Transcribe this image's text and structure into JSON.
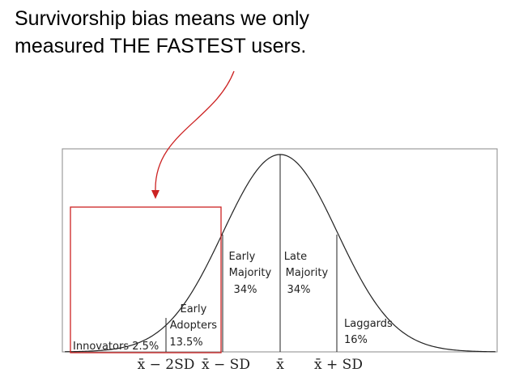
{
  "headline": {
    "line1": "Survivorship bias means we only",
    "line2": "measured THE FASTEST users."
  },
  "colors": {
    "highlight_red": "#cc2222",
    "curve": "#222222",
    "frame": "#888888"
  },
  "segments": [
    {
      "name": "Innovators",
      "lines": [
        "Innovators 2.5%"
      ],
      "percent": 2.5
    },
    {
      "name": "Early Adopters",
      "lines": [
        "Early",
        "Adopters",
        "13.5%"
      ],
      "percent": 13.5
    },
    {
      "name": "Early Majority",
      "lines": [
        "Early",
        "Majority",
        "34%"
      ],
      "percent": 34
    },
    {
      "name": "Late Majority",
      "lines": [
        "Late",
        "Majority",
        "34%"
      ],
      "percent": 34
    },
    {
      "name": "Laggards",
      "lines": [
        "Laggards",
        "16%"
      ],
      "percent": 16
    }
  ],
  "x_axis_labels": [
    "x̄ − 2SD",
    "x̄ − SD",
    "x̄",
    "x̄ + SD"
  ]
}
